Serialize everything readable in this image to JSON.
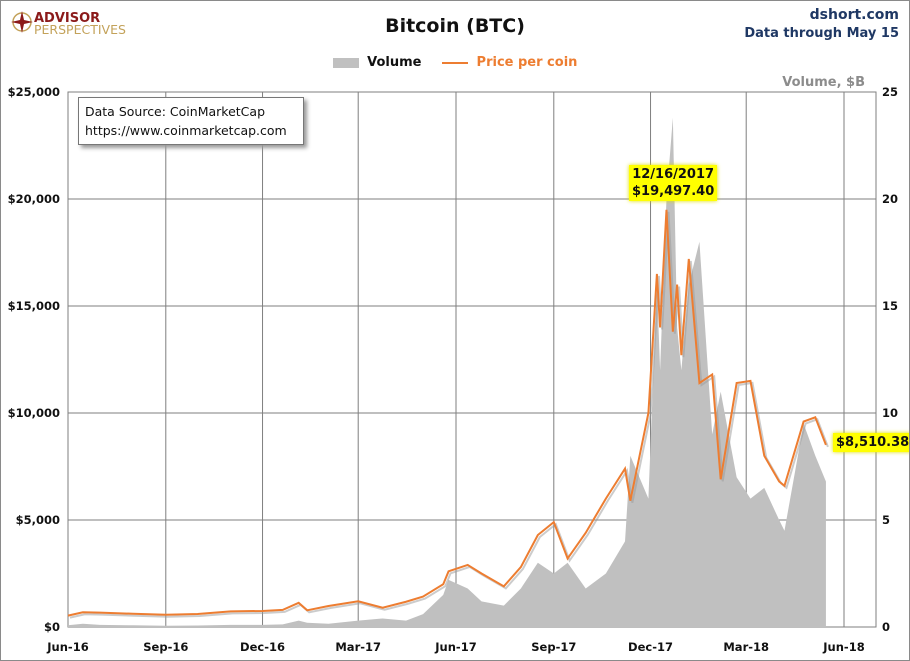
{
  "header": {
    "logo_top": "ADVISOR",
    "logo_bottom": "PERSPECTIVES",
    "site": "dshort.com",
    "data_through": "Data through May 15"
  },
  "source_box": {
    "line1": "Data Source: CoinMarketCap",
    "line2": "https://www.coinmarketcap.com"
  },
  "colors": {
    "price": "#ed7d31",
    "volume": "#c0c0c0",
    "grid": "#7f7f7f",
    "highlight": "#ffff00",
    "brand_red": "#8b1a1a",
    "brand_gold": "#c3a25a",
    "header_blue": "#1f3864"
  },
  "chart_data": {
    "type": "line+area",
    "title": "Bitcoin (BTC)",
    "legend": [
      {
        "name": "Volume",
        "type": "area",
        "color": "#c0c0c0"
      },
      {
        "name": "Price per coin",
        "type": "line",
        "color": "#ed7d31"
      }
    ],
    "legend_position": "top",
    "y_left": {
      "range": [
        0,
        25000
      ],
      "ticks": [
        "$0",
        "$5,000",
        "$10,000",
        "$15,000",
        "$20,000",
        "$25,000"
      ]
    },
    "y_right": {
      "label": "Volume, $B",
      "range": [
        0,
        25
      ],
      "ticks": [
        "0",
        "5",
        "10",
        "15",
        "20",
        "25"
      ]
    },
    "x_ticks": [
      "Jun-16",
      "Sep-16",
      "Dec-16",
      "Mar-17",
      "Jun-17",
      "Sep-17",
      "Dec-17",
      "Mar-18",
      "Jun-18"
    ],
    "x_tick_dates": [
      "2016-06-01",
      "2016-09-01",
      "2016-12-01",
      "2017-03-01",
      "2017-06-01",
      "2017-09-01",
      "2017-12-01",
      "2018-03-01",
      "2018-06-01"
    ],
    "grid": true,
    "dates": [
      "2016-06-01",
      "2016-06-15",
      "2016-07-01",
      "2016-08-01",
      "2016-09-01",
      "2016-10-01",
      "2016-11-01",
      "2016-12-01",
      "2016-12-20",
      "2017-01-04",
      "2017-01-12",
      "2017-02-01",
      "2017-03-01",
      "2017-03-24",
      "2017-04-15",
      "2017-05-01",
      "2017-05-20",
      "2017-05-25",
      "2017-06-12",
      "2017-06-25",
      "2017-07-16",
      "2017-08-01",
      "2017-08-17",
      "2017-09-01",
      "2017-09-14",
      "2017-10-01",
      "2017-10-20",
      "2017-11-07",
      "2017-11-12",
      "2017-11-29",
      "2017-12-07",
      "2017-12-10",
      "2017-12-16",
      "2017-12-22",
      "2017-12-26",
      "2017-12-30",
      "2018-01-06",
      "2018-01-16",
      "2018-01-28",
      "2018-02-05",
      "2018-02-20",
      "2018-03-05",
      "2018-03-18",
      "2018-04-01",
      "2018-04-06",
      "2018-04-24",
      "2018-05-05",
      "2018-05-15"
    ],
    "price": [
      530,
      690,
      670,
      620,
      575,
      610,
      730,
      750,
      800,
      1130,
      780,
      980,
      1200,
      900,
      1180,
      1420,
      2000,
      2600,
      2900,
      2500,
      1900,
      2800,
      4300,
      4900,
      3200,
      4400,
      6000,
      7400,
      5900,
      10000,
      16500,
      14000,
      19497.4,
      13800,
      16000,
      12700,
      17200,
      11400,
      11800,
      6900,
      11400,
      11500,
      8000,
      6800,
      6600,
      9600,
      9800,
      8510.38
    ],
    "volume": [
      0.08,
      0.15,
      0.1,
      0.08,
      0.06,
      0.07,
      0.1,
      0.1,
      0.12,
      0.3,
      0.2,
      0.15,
      0.3,
      0.4,
      0.3,
      0.6,
      1.5,
      2.2,
      1.8,
      1.2,
      1.0,
      1.8,
      3.0,
      2.5,
      3.0,
      1.8,
      2.5,
      4.0,
      8.0,
      6.0,
      16.0,
      12.0,
      20.0,
      23.8,
      14.0,
      12.0,
      16.0,
      18.0,
      9.0,
      11.0,
      7.0,
      6.0,
      6.5,
      5.0,
      4.5,
      9.5,
      8.0,
      6.8
    ],
    "annotations": [
      {
        "date": "12/16/2017",
        "value": "$19,497.40"
      },
      {
        "value": "$8,510.38"
      }
    ]
  }
}
